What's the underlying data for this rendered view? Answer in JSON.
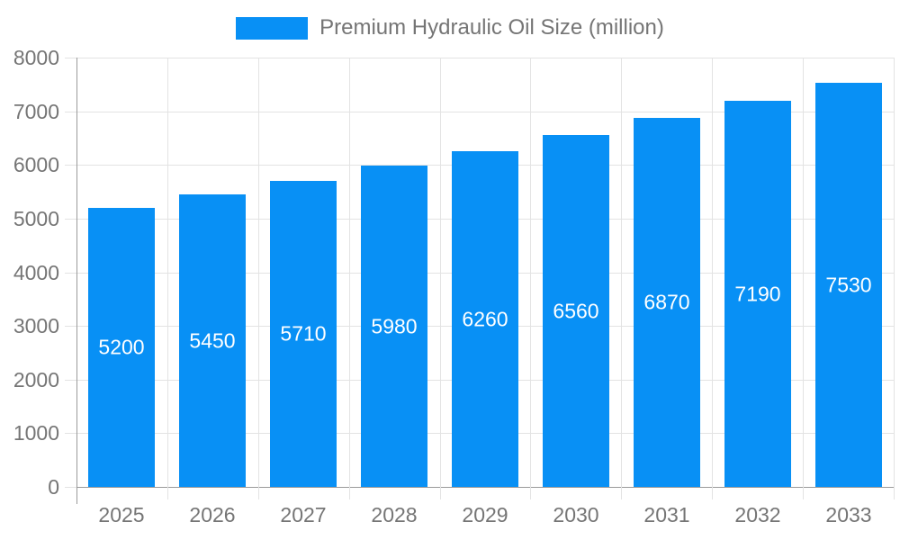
{
  "chart_data": {
    "type": "bar",
    "title": "Premium Hydraulic Oil Size (million)",
    "categories": [
      "2025",
      "2026",
      "2027",
      "2028",
      "2029",
      "2030",
      "2031",
      "2032",
      "2033"
    ],
    "series": [
      {
        "name": "Premium Hydraulic Oil Size (million)",
        "values": [
          5200,
          5450,
          5710,
          5980,
          6260,
          6560,
          6870,
          7190,
          7530
        ]
      }
    ],
    "bar_value_labels": [
      "5200",
      "5450",
      "5710",
      "5980",
      "6260",
      "6560",
      "6870",
      "7190",
      "7530"
    ],
    "xlabel": "",
    "ylabel": "",
    "ylim": [
      0,
      8000
    ],
    "ytick_step": 1000,
    "ytick_labels": [
      "0",
      "1000",
      "2000",
      "3000",
      "4000",
      "5000",
      "6000",
      "7000",
      "8000"
    ],
    "grid": "both",
    "legend_position": "top",
    "colors": {
      "bar": "#0890F5",
      "bar_label": "#ffffff",
      "axis_text": "#757575",
      "axis_line": "#9a9a9a",
      "gridline": "#e3e3e3",
      "background": "#ffffff"
    }
  }
}
